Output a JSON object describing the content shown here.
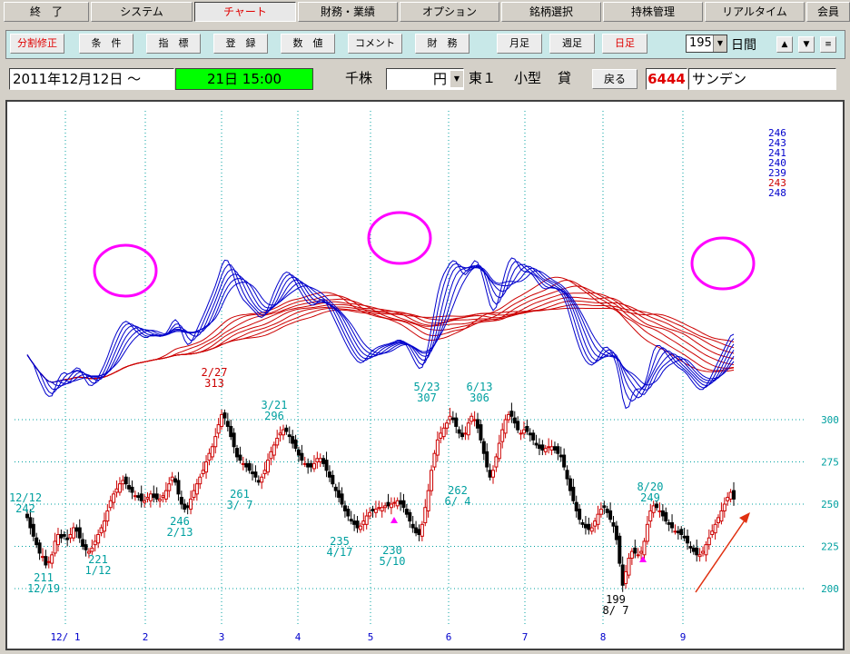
{
  "menu": [
    "終　了",
    "システム",
    "チャート",
    "財務・業績",
    "オプション",
    "銘柄選択",
    "持株管理",
    "リアルタイム",
    "会員"
  ],
  "menu_active": 2,
  "toolbar": {
    "buttons": [
      "分割修正",
      "条　件",
      "指　標",
      "登　録",
      "数　値",
      "コメント",
      "財　務",
      "月足",
      "週足",
      "日足"
    ],
    "red_buttons": [
      0,
      9
    ],
    "days_value": "195",
    "days_label": "日間"
  },
  "info": {
    "date_start": "2011年12月12日 ～",
    "date_end": "21日 15:00",
    "unit": "千株",
    "currency": "円",
    "market": "東１",
    "size": "小型",
    "lend": "貸",
    "back_btn": "戻る",
    "code": "6444",
    "name": "サンデン"
  },
  "colors": {
    "blue": "#0000cc",
    "red": "#cc0000",
    "cyan": "#00a0a0",
    "magenta": "#ff00ff",
    "green": "#00ff00"
  },
  "chart_data": {
    "type": "candlestick",
    "months": [
      "12/ 1",
      "2",
      "3",
      "4",
      "5",
      "6",
      "7",
      "8",
      "9"
    ],
    "yticks": [
      300,
      275,
      250,
      225,
      200
    ],
    "ylim": [
      195,
      315
    ],
    "legend_upper": [
      "246",
      "243",
      "241",
      "240",
      "239",
      "243",
      "248"
    ],
    "legend_colors": [
      "blue",
      "blue",
      "blue",
      "blue",
      "blue",
      "red",
      "blue"
    ],
    "annotations": [
      {
        "text": [
          "12/12",
          "242"
        ],
        "color": "cyan"
      },
      {
        "text": [
          "211",
          "12/19"
        ],
        "color": "cyan"
      },
      {
        "text": [
          "221",
          "1/12"
        ],
        "color": "cyan"
      },
      {
        "text": [
          "246",
          "2/13"
        ],
        "color": "cyan"
      },
      {
        "text": [
          "2/27",
          "313"
        ],
        "color": "red"
      },
      {
        "text": [
          "261",
          "3/ 7"
        ],
        "color": "cyan"
      },
      {
        "text": [
          "3/21",
          "296"
        ],
        "color": "cyan"
      },
      {
        "text": [
          "235",
          "4/17"
        ],
        "color": "cyan"
      },
      {
        "text": [
          "230",
          "5/10"
        ],
        "color": "cyan"
      },
      {
        "text": [
          "5/23",
          "307"
        ],
        "color": "cyan"
      },
      {
        "text": [
          "262",
          "6/ 4"
        ],
        "color": "cyan"
      },
      {
        "text": [
          "6/13",
          "306"
        ],
        "color": "cyan"
      },
      {
        "text": [
          "199",
          "8/ 7"
        ],
        "color": "black"
      },
      {
        "text": [
          "8/20",
          "249"
        ],
        "color": "cyan"
      }
    ],
    "closes": [
      242,
      236,
      231,
      226,
      221,
      219,
      214,
      216,
      220,
      228,
      232,
      230,
      231,
      229,
      232,
      236,
      234,
      230,
      225,
      223,
      222,
      224,
      228,
      232,
      236,
      240,
      246,
      252,
      256,
      259,
      262,
      264,
      262,
      259,
      257,
      255,
      254,
      252,
      252,
      254,
      256,
      254,
      253,
      253,
      255,
      258,
      262,
      266,
      263,
      256,
      250,
      247,
      248,
      253,
      258,
      262,
      266,
      270,
      275,
      280,
      284,
      290,
      297,
      303,
      301,
      296,
      290,
      284,
      278,
      276,
      274,
      272,
      270,
      268,
      266,
      263,
      266,
      270,
      276,
      281,
      285,
      289,
      292,
      294,
      293,
      290,
      286,
      283,
      279,
      276,
      274,
      272,
      272,
      274,
      277,
      277,
      274,
      270,
      266,
      262,
      258,
      254,
      250,
      246,
      243,
      240,
      238,
      236,
      237,
      240,
      243,
      245,
      246,
      247,
      248,
      248,
      249,
      249,
      250,
      251,
      252,
      250,
      248,
      244,
      240,
      236,
      233,
      232,
      238,
      248,
      258,
      270,
      280,
      288,
      292,
      295,
      298,
      302,
      300,
      296,
      292,
      290,
      292,
      298,
      302,
      300,
      295,
      288,
      280,
      272,
      266,
      270,
      278,
      286,
      294,
      300,
      303,
      302,
      298,
      294,
      292,
      294,
      293,
      291,
      288,
      285,
      283,
      282,
      283,
      284,
      284,
      282,
      280,
      278,
      272,
      265,
      258,
      252,
      246,
      241,
      238,
      236,
      235,
      236,
      240,
      244,
      247,
      248,
      245,
      241,
      237,
      229,
      215,
      202,
      210,
      218,
      222,
      221,
      220,
      222,
      228,
      238,
      246,
      249,
      248,
      246,
      243,
      240,
      238,
      236,
      234,
      233,
      232,
      230,
      227,
      224,
      222,
      220,
      220,
      222,
      226,
      230,
      234,
      238,
      242,
      246,
      250,
      254,
      257,
      253
    ]
  }
}
